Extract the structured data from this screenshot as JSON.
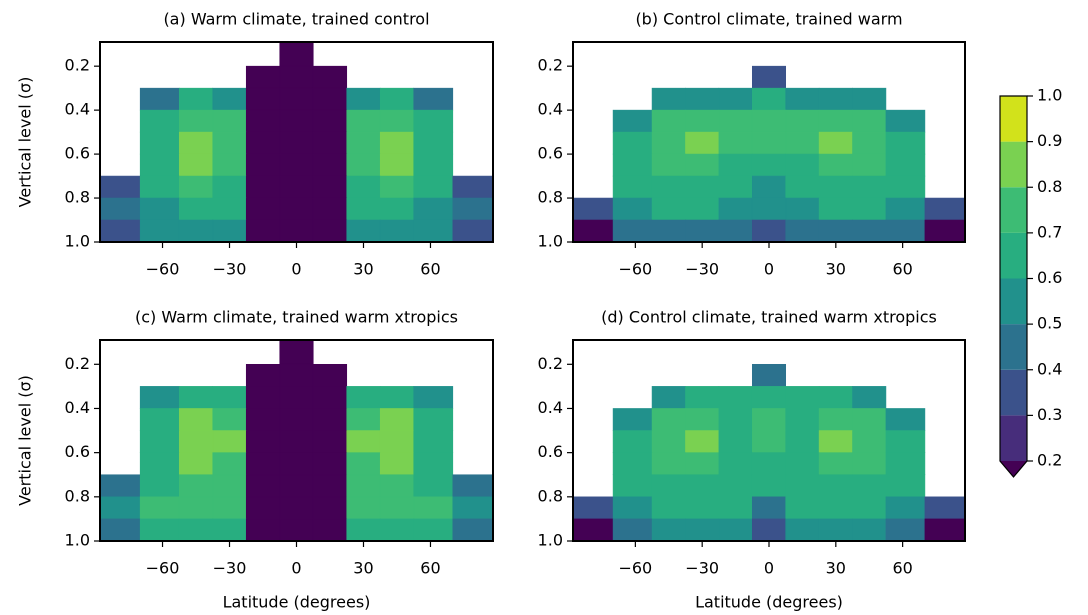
{
  "chart_data": [
    {
      "type": "contour",
      "title": "(a) Warm climate, trained control",
      "ylabel": "Vertical level (σ)",
      "x": [
        -80,
        -60,
        -45,
        -30,
        -15,
        0,
        15,
        30,
        45,
        60,
        80
      ],
      "y": [
        0.15,
        0.25,
        0.35,
        0.45,
        0.55,
        0.65,
        0.75,
        0.85,
        0.95
      ],
      "z": [
        [
          null,
          null,
          null,
          null,
          null,
          0.1,
          null,
          null,
          null,
          null,
          null
        ],
        [
          null,
          null,
          null,
          null,
          0.1,
          0.1,
          0.1,
          null,
          null,
          null,
          null
        ],
        [
          null,
          0.45,
          0.6,
          0.5,
          0.1,
          0.1,
          0.1,
          0.5,
          0.6,
          0.45,
          null
        ],
        [
          null,
          0.6,
          0.75,
          0.7,
          0.1,
          0.1,
          0.1,
          0.7,
          0.75,
          0.6,
          null
        ],
        [
          null,
          0.65,
          0.83,
          0.78,
          0.1,
          0.1,
          0.1,
          0.78,
          0.83,
          0.65,
          null
        ],
        [
          null,
          0.65,
          0.8,
          0.72,
          0.1,
          0.1,
          0.1,
          0.72,
          0.8,
          0.65,
          null
        ],
        [
          0.35,
          0.62,
          0.72,
          0.68,
          0.1,
          0.1,
          0.1,
          0.68,
          0.72,
          0.62,
          0.35
        ],
        [
          0.4,
          0.58,
          0.65,
          0.62,
          0.1,
          0.1,
          0.1,
          0.62,
          0.65,
          0.58,
          0.4
        ],
        [
          0.3,
          0.5,
          0.55,
          0.5,
          0.1,
          0.1,
          0.1,
          0.5,
          0.55,
          0.5,
          0.3
        ]
      ],
      "xlim": [
        -88,
        88
      ],
      "ylim": [
        1,
        0.09
      ],
      "xticks": [
        {
          "value": -60,
          "label": "−60"
        },
        {
          "value": -30,
          "label": "−30"
        },
        0,
        30,
        60
      ],
      "yticks": [
        0.2,
        0.4,
        0.6,
        0.8,
        {
          "value": 1,
          "label": "1.0"
        }
      ]
    },
    {
      "type": "contour",
      "title": "(b) Control climate, trained warm",
      "x": [
        -80,
        -60,
        -45,
        -30,
        -15,
        0,
        15,
        30,
        45,
        60,
        80
      ],
      "y": [
        0.15,
        0.25,
        0.35,
        0.45,
        0.55,
        0.65,
        0.75,
        0.85,
        0.95
      ],
      "z": [
        [
          null,
          null,
          null,
          null,
          null,
          null,
          null,
          null,
          null,
          null,
          null
        ],
        [
          null,
          null,
          null,
          null,
          null,
          0.35,
          null,
          null,
          null,
          null,
          null
        ],
        [
          null,
          null,
          0.5,
          0.55,
          0.55,
          0.6,
          0.55,
          0.55,
          0.5,
          null,
          null
        ],
        [
          null,
          0.5,
          0.7,
          0.75,
          0.7,
          0.72,
          0.7,
          0.75,
          0.7,
          0.5,
          null
        ],
        [
          null,
          0.6,
          0.75,
          0.82,
          0.72,
          0.72,
          0.72,
          0.82,
          0.75,
          0.6,
          null
        ],
        [
          null,
          0.62,
          0.72,
          0.75,
          0.68,
          0.65,
          0.68,
          0.75,
          0.72,
          0.62,
          null
        ],
        [
          null,
          0.6,
          0.65,
          0.65,
          0.62,
          0.58,
          0.62,
          0.65,
          0.65,
          0.6,
          null
        ],
        [
          0.3,
          0.55,
          0.6,
          0.6,
          0.55,
          0.5,
          0.55,
          0.6,
          0.6,
          0.55,
          0.3
        ],
        [
          0.15,
          0.4,
          0.45,
          0.45,
          0.45,
          0.3,
          0.45,
          0.45,
          0.45,
          0.4,
          0.15
        ]
      ],
      "xlim": [
        -88,
        88
      ],
      "ylim": [
        1,
        0.09
      ],
      "xticks": [
        {
          "value": -60,
          "label": "−60"
        },
        {
          "value": -30,
          "label": "−30"
        },
        0,
        30,
        60
      ],
      "yticks": [
        0.2,
        0.4,
        0.6,
        0.8,
        {
          "value": 1,
          "label": "1.0"
        }
      ]
    },
    {
      "type": "contour",
      "title": "(c) Warm climate, trained warm xtropics",
      "ylabel": "Vertical level (σ)",
      "xlabel": "Latitude (degrees)",
      "x": [
        -80,
        -60,
        -45,
        -30,
        -15,
        0,
        15,
        30,
        45,
        60,
        80
      ],
      "y": [
        0.15,
        0.25,
        0.35,
        0.45,
        0.55,
        0.65,
        0.75,
        0.85,
        0.95
      ],
      "z": [
        [
          null,
          null,
          null,
          null,
          null,
          0.1,
          null,
          null,
          null,
          null,
          null
        ],
        [
          null,
          null,
          null,
          null,
          0.1,
          0.1,
          0.1,
          null,
          null,
          null,
          null
        ],
        [
          null,
          0.5,
          0.65,
          0.6,
          0.1,
          0.1,
          0.1,
          0.6,
          0.65,
          0.5,
          null
        ],
        [
          null,
          0.65,
          0.8,
          0.78,
          0.1,
          0.1,
          0.1,
          0.78,
          0.8,
          0.65,
          null
        ],
        [
          null,
          0.68,
          0.84,
          0.82,
          0.1,
          0.1,
          0.1,
          0.82,
          0.84,
          0.68,
          null
        ],
        [
          null,
          0.68,
          0.83,
          0.78,
          0.1,
          0.1,
          0.1,
          0.78,
          0.83,
          0.68,
          null
        ],
        [
          0.45,
          0.68,
          0.78,
          0.72,
          0.1,
          0.1,
          0.1,
          0.72,
          0.78,
          0.68,
          0.45
        ],
        [
          0.5,
          0.72,
          0.75,
          0.72,
          0.1,
          0.1,
          0.1,
          0.72,
          0.75,
          0.72,
          0.5
        ],
        [
          0.45,
          0.6,
          0.62,
          0.6,
          0.1,
          0.1,
          0.1,
          0.6,
          0.62,
          0.6,
          0.45
        ]
      ],
      "xlim": [
        -88,
        88
      ],
      "ylim": [
        1,
        0.09
      ],
      "xticks": [
        {
          "value": -60,
          "label": "−60"
        },
        {
          "value": -30,
          "label": "−30"
        },
        0,
        30,
        60
      ],
      "yticks": [
        0.2,
        0.4,
        0.6,
        0.8,
        {
          "value": 1,
          "label": "1.0"
        }
      ]
    },
    {
      "type": "contour",
      "title": "(d) Control climate, trained warm xtropics",
      "xlabel": "Latitude (degrees)",
      "x": [
        -80,
        -60,
        -45,
        -30,
        -15,
        0,
        15,
        30,
        45,
        60,
        80
      ],
      "y": [
        0.15,
        0.25,
        0.35,
        0.45,
        0.55,
        0.65,
        0.75,
        0.85,
        0.95
      ],
      "z": [
        [
          null,
          null,
          null,
          null,
          null,
          null,
          null,
          null,
          null,
          null,
          null
        ],
        [
          null,
          null,
          null,
          null,
          null,
          0.45,
          null,
          null,
          null,
          null,
          null
        ],
        [
          null,
          null,
          0.55,
          0.6,
          0.6,
          0.65,
          0.6,
          0.6,
          0.55,
          null,
          null
        ],
        [
          null,
          0.55,
          0.72,
          0.78,
          0.68,
          0.72,
          0.68,
          0.78,
          0.72,
          0.55,
          null
        ],
        [
          null,
          0.62,
          0.78,
          0.83,
          0.68,
          0.7,
          0.68,
          0.83,
          0.78,
          0.62,
          null
        ],
        [
          null,
          0.65,
          0.75,
          0.78,
          0.65,
          0.62,
          0.65,
          0.78,
          0.75,
          0.65,
          null
        ],
        [
          null,
          0.62,
          0.68,
          0.68,
          0.65,
          0.6,
          0.65,
          0.68,
          0.68,
          0.62,
          null
        ],
        [
          0.3,
          0.58,
          0.62,
          0.62,
          0.6,
          0.4,
          0.6,
          0.62,
          0.62,
          0.58,
          0.3
        ],
        [
          0.15,
          0.42,
          0.5,
          0.5,
          0.5,
          0.35,
          0.5,
          0.5,
          0.5,
          0.42,
          0.15
        ]
      ],
      "xlim": [
        -88,
        88
      ],
      "ylim": [
        1,
        0.09
      ],
      "xticks": [
        {
          "value": -60,
          "label": "−60"
        },
        {
          "value": -30,
          "label": "−30"
        },
        0,
        30,
        60
      ],
      "yticks": [
        0.2,
        0.4,
        0.6,
        0.8,
        {
          "value": 1,
          "label": "1.0"
        }
      ]
    }
  ],
  "colorbar": {
    "levels": [
      0.2,
      0.3,
      0.4,
      0.5,
      0.6,
      0.7,
      0.8,
      0.9,
      {
        "value": 1,
        "label": "1.0"
      }
    ],
    "colors": [
      "#472d7b",
      "#3b528b",
      "#2c728e",
      "#21918c",
      "#28ae80",
      "#3dbc74",
      "#7ad151",
      "#d2e21b"
    ],
    "under_color": "#440154"
  }
}
